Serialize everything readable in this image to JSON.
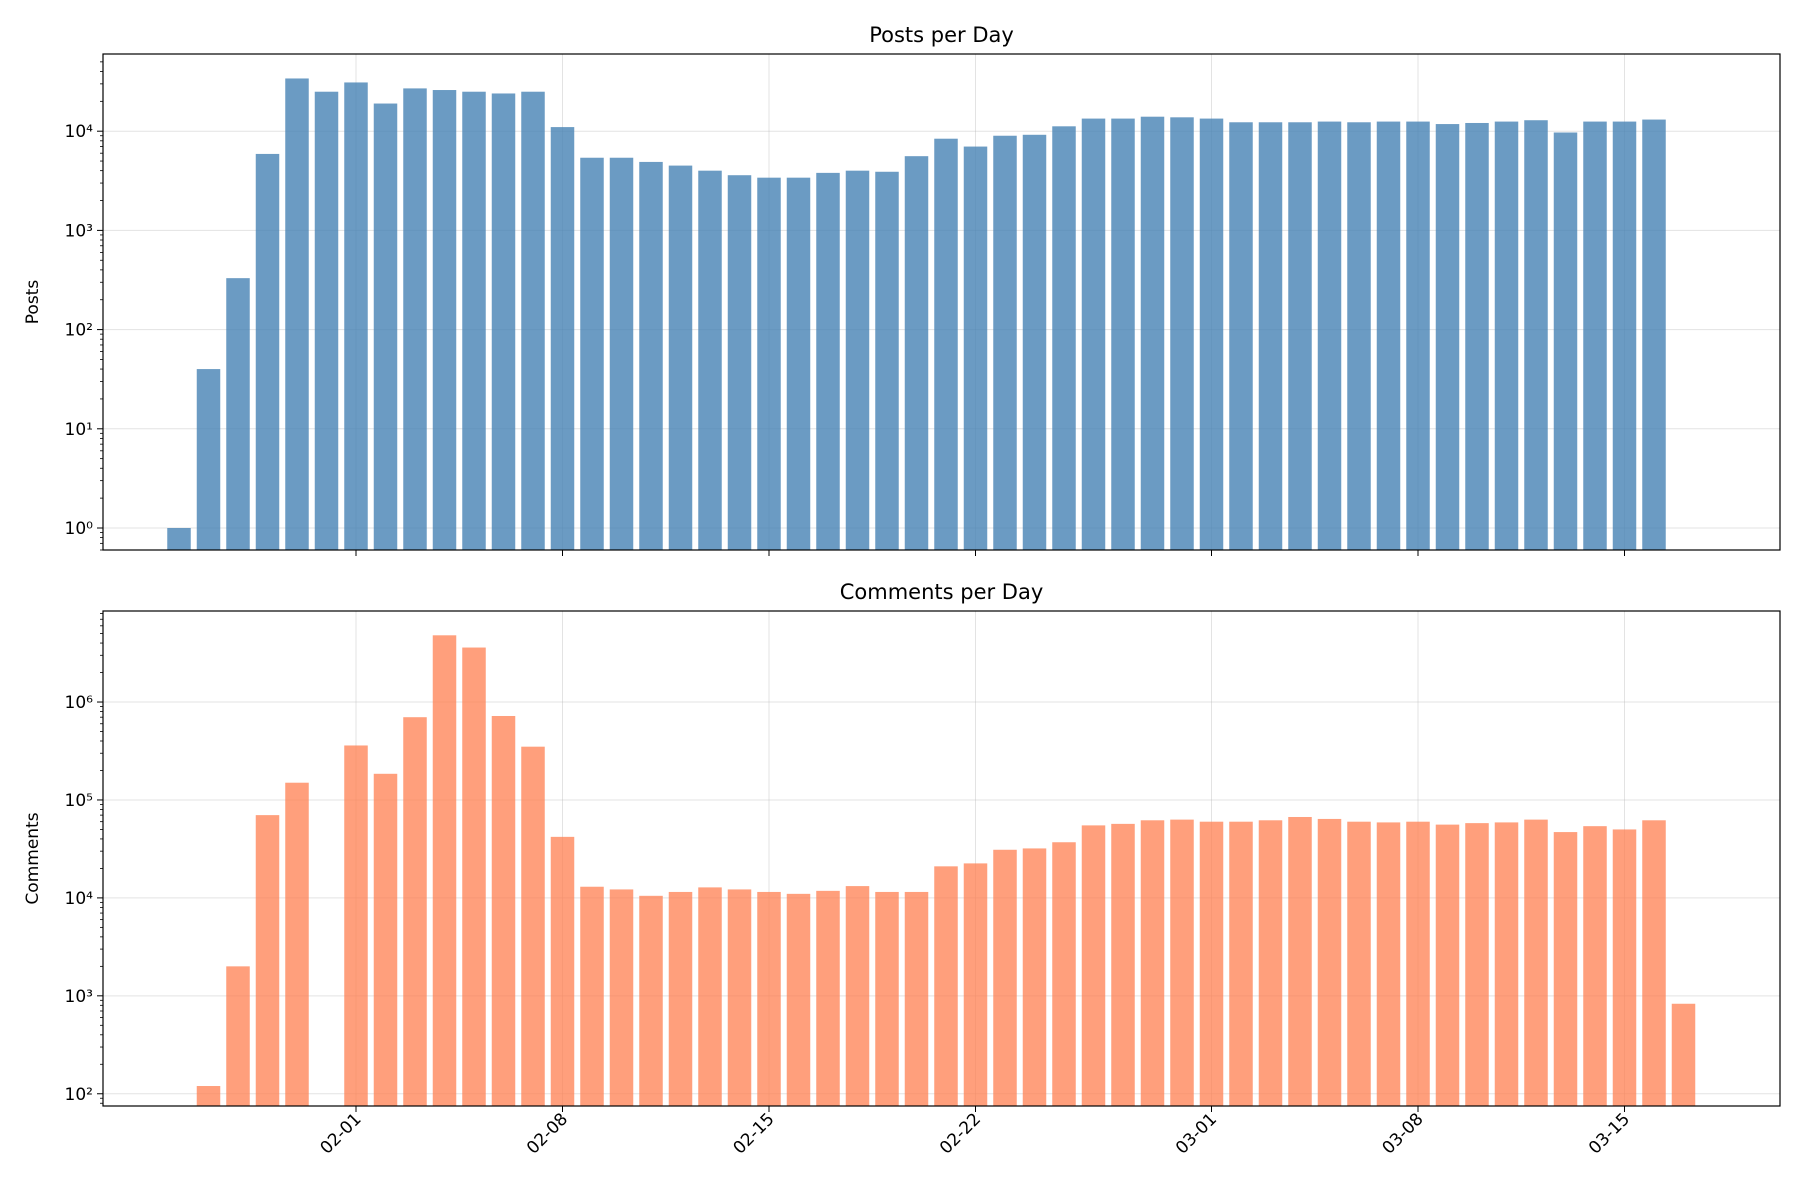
{
  "chart_data": [
    {
      "type": "bar",
      "title": "Posts per Day",
      "xlabel": "",
      "ylabel": "Posts",
      "yscale": "log",
      "ylim": [
        0.6,
        60000
      ],
      "color": "#4682b4",
      "grid": true,
      "x_start": "01-26",
      "xticks": [
        "02-01",
        "02-08",
        "02-15",
        "02-22",
        "03-01",
        "03-08",
        "03-15"
      ],
      "xticks_visible": false,
      "yticks": [
        1,
        10,
        100,
        1000,
        10000
      ],
      "values": [
        1,
        40,
        330,
        5900,
        34000,
        25000,
        31000,
        19000,
        27000,
        26000,
        25000,
        24000,
        25000,
        11000,
        5400,
        5400,
        4900,
        4500,
        4000,
        3600,
        3400,
        3400,
        3800,
        4000,
        3900,
        5600,
        8400,
        7000,
        9000,
        9200,
        11200,
        13400,
        13400,
        14000,
        13800,
        13400,
        12300,
        12300,
        12300,
        12500,
        12300,
        12500,
        12500,
        11800,
        12100,
        12500,
        12900,
        9700,
        12500,
        12500,
        13100
      ]
    },
    {
      "type": "bar",
      "title": "Comments per Day",
      "xlabel": "",
      "ylabel": "Comments",
      "yscale": "log",
      "ylim": [
        75,
        8500000
      ],
      "color": "#ff7f50",
      "grid": true,
      "x_start": "01-26",
      "xticks": [
        "02-01",
        "02-08",
        "02-15",
        "02-22",
        "03-01",
        "03-08",
        "03-15"
      ],
      "xticks_visible": true,
      "yticks": [
        100,
        1000,
        10000,
        100000,
        1000000
      ],
      "values": [
        null,
        120,
        2000,
        70000,
        150000,
        null,
        360000,
        185000,
        700000,
        4800000,
        3600000,
        720000,
        350000,
        42000,
        13000,
        12200,
        10500,
        11500,
        12800,
        12200,
        11500,
        11000,
        11800,
        13200,
        11500,
        11500,
        21000,
        22500,
        31000,
        32000,
        37000,
        55000,
        57000,
        62000,
        63000,
        60000,
        60000,
        62000,
        67000,
        64000,
        60000,
        59000,
        60000,
        56000,
        58000,
        59000,
        63000,
        47000,
        54000,
        50000,
        62000,
        830
      ]
    }
  ]
}
